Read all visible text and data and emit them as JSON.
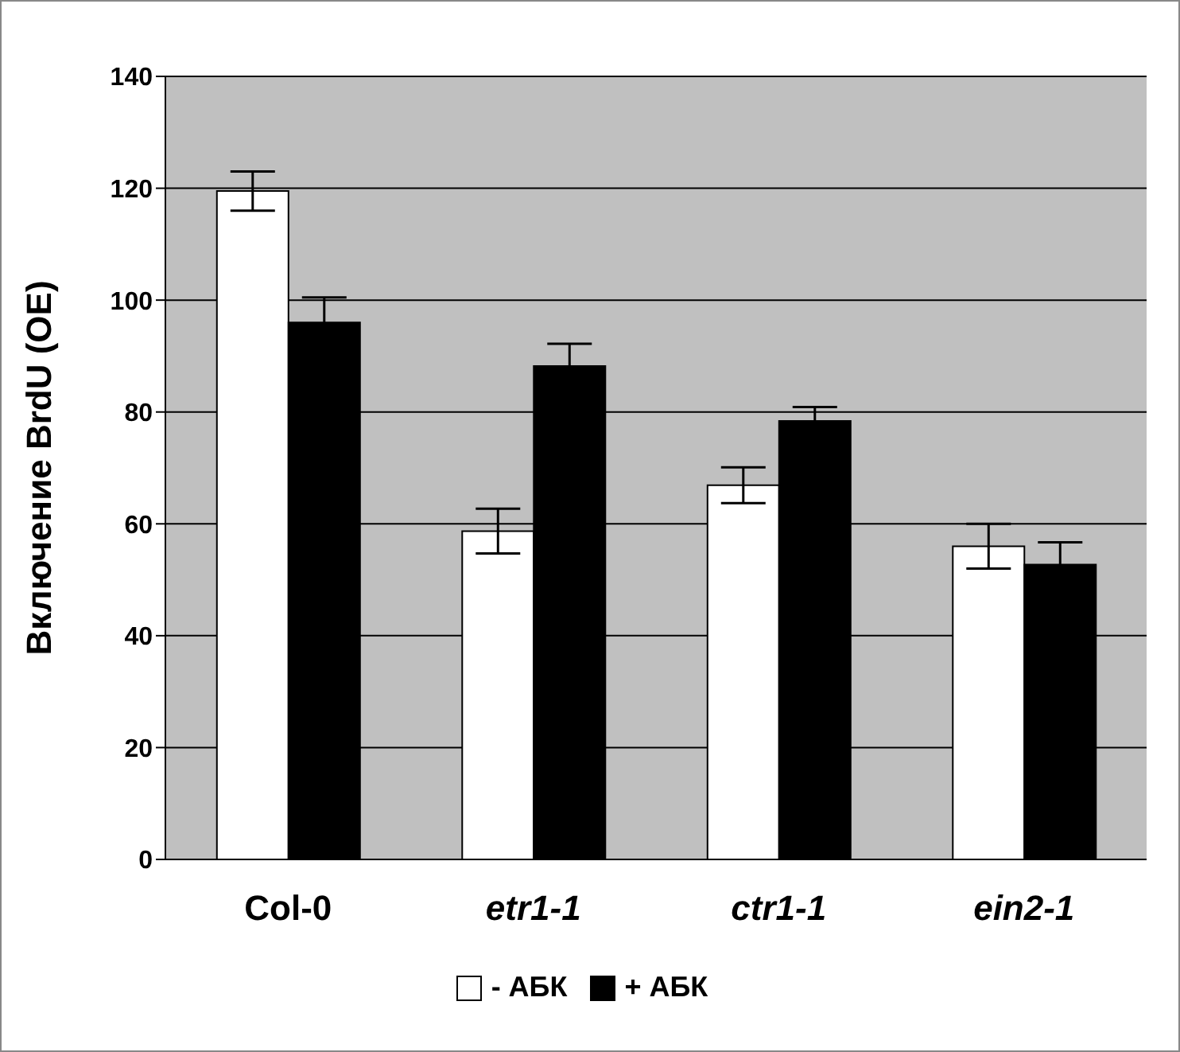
{
  "chart_data": {
    "type": "bar",
    "ylabel": "Включение BrdU (OE)",
    "categories": [
      "Col-0",
      "etr1-1",
      "ctr1-1",
      "ein2-1"
    ],
    "series": [
      {
        "name": "- АБК",
        "color": "#ffffff",
        "values": [
          119.5,
          58.7,
          66.9,
          56
        ],
        "errors": [
          3.5,
          4,
          3.2,
          4
        ]
      },
      {
        "name": "+ АБК",
        "color": "#000000",
        "values": [
          96,
          88.2,
          78.4,
          52.7
        ],
        "errors": [
          4.5,
          4,
          2.5,
          4
        ]
      }
    ],
    "ylim": [
      0,
      140
    ],
    "yticks": [
      0,
      20,
      40,
      60,
      80,
      100,
      120,
      140
    ],
    "grid": "y",
    "legend": "bottom"
  }
}
